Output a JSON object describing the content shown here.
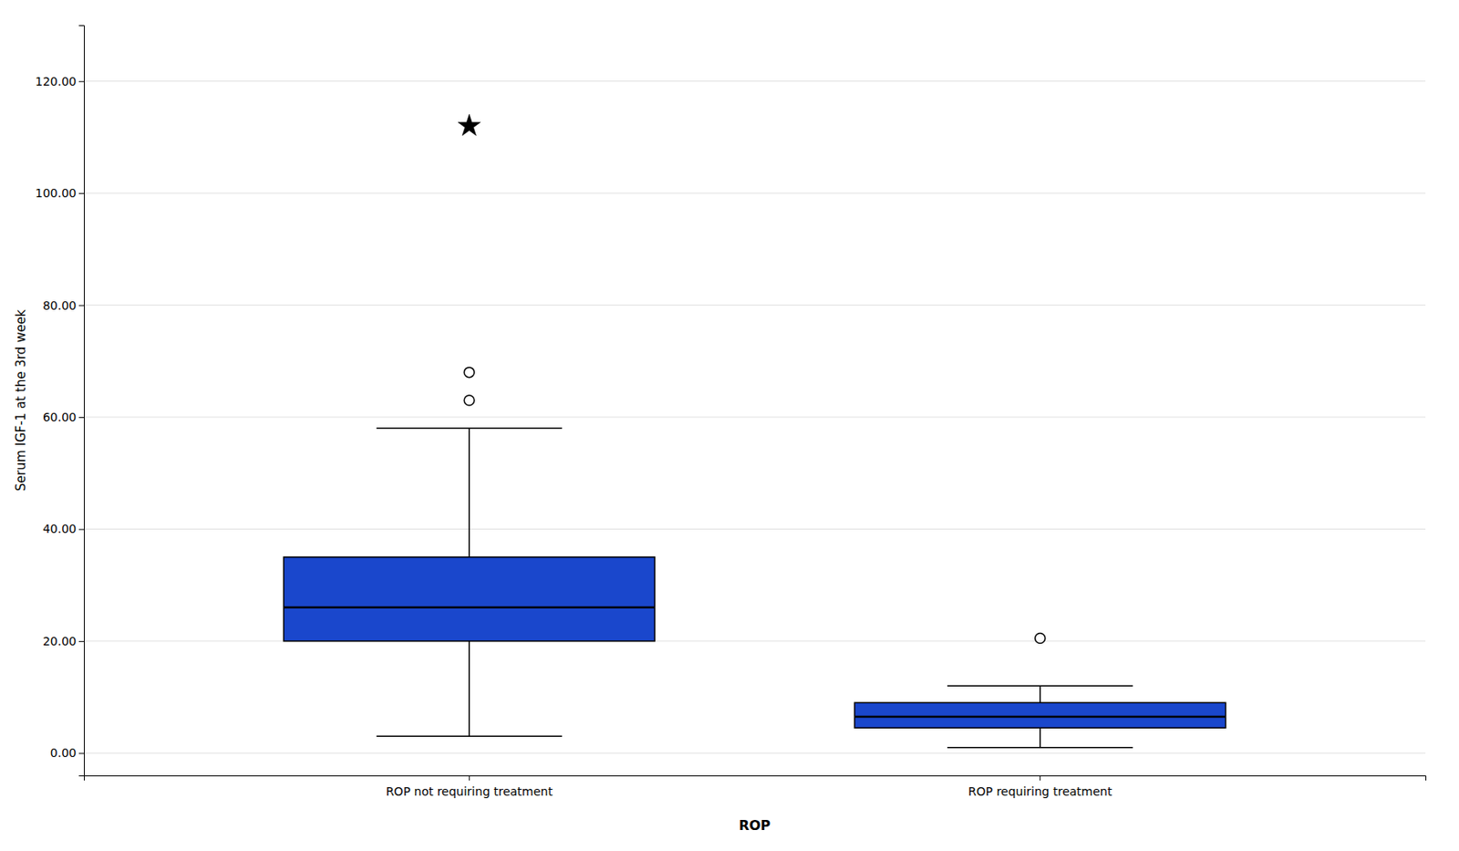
{
  "chart_data": {
    "type": "box",
    "categories": [
      "ROP not requiring treatment",
      "ROP requiring treatment"
    ],
    "xlabel": "ROP",
    "ylabel": "Serum IGF-1 at the 3rd week",
    "ylim": [
      -4,
      130
    ],
    "yticks": [
      {
        "value": 0,
        "label": "0.00"
      },
      {
        "value": 20,
        "label": "20.00"
      },
      {
        "value": 40,
        "label": "40.00"
      },
      {
        "value": 60,
        "label": "60.00"
      },
      {
        "value": 80,
        "label": "80.00"
      },
      {
        "value": 100,
        "label": "100.00"
      },
      {
        "value": 120,
        "label": "120.00"
      }
    ],
    "grid": true,
    "color": "#1A47CC",
    "boxes": [
      {
        "median": 26.0,
        "q1": 20.0,
        "q3": 35.0,
        "whisker_low": 3.0,
        "whisker_high": 58.0,
        "outliers": [
          63.0,
          68.0
        ],
        "far_outliers": [
          112.0
        ]
      },
      {
        "median": 6.5,
        "q1": 4.5,
        "q3": 9.0,
        "whisker_low": 1.0,
        "whisker_high": 12.0,
        "outliers": [
          20.5
        ],
        "far_outliers": []
      }
    ]
  }
}
